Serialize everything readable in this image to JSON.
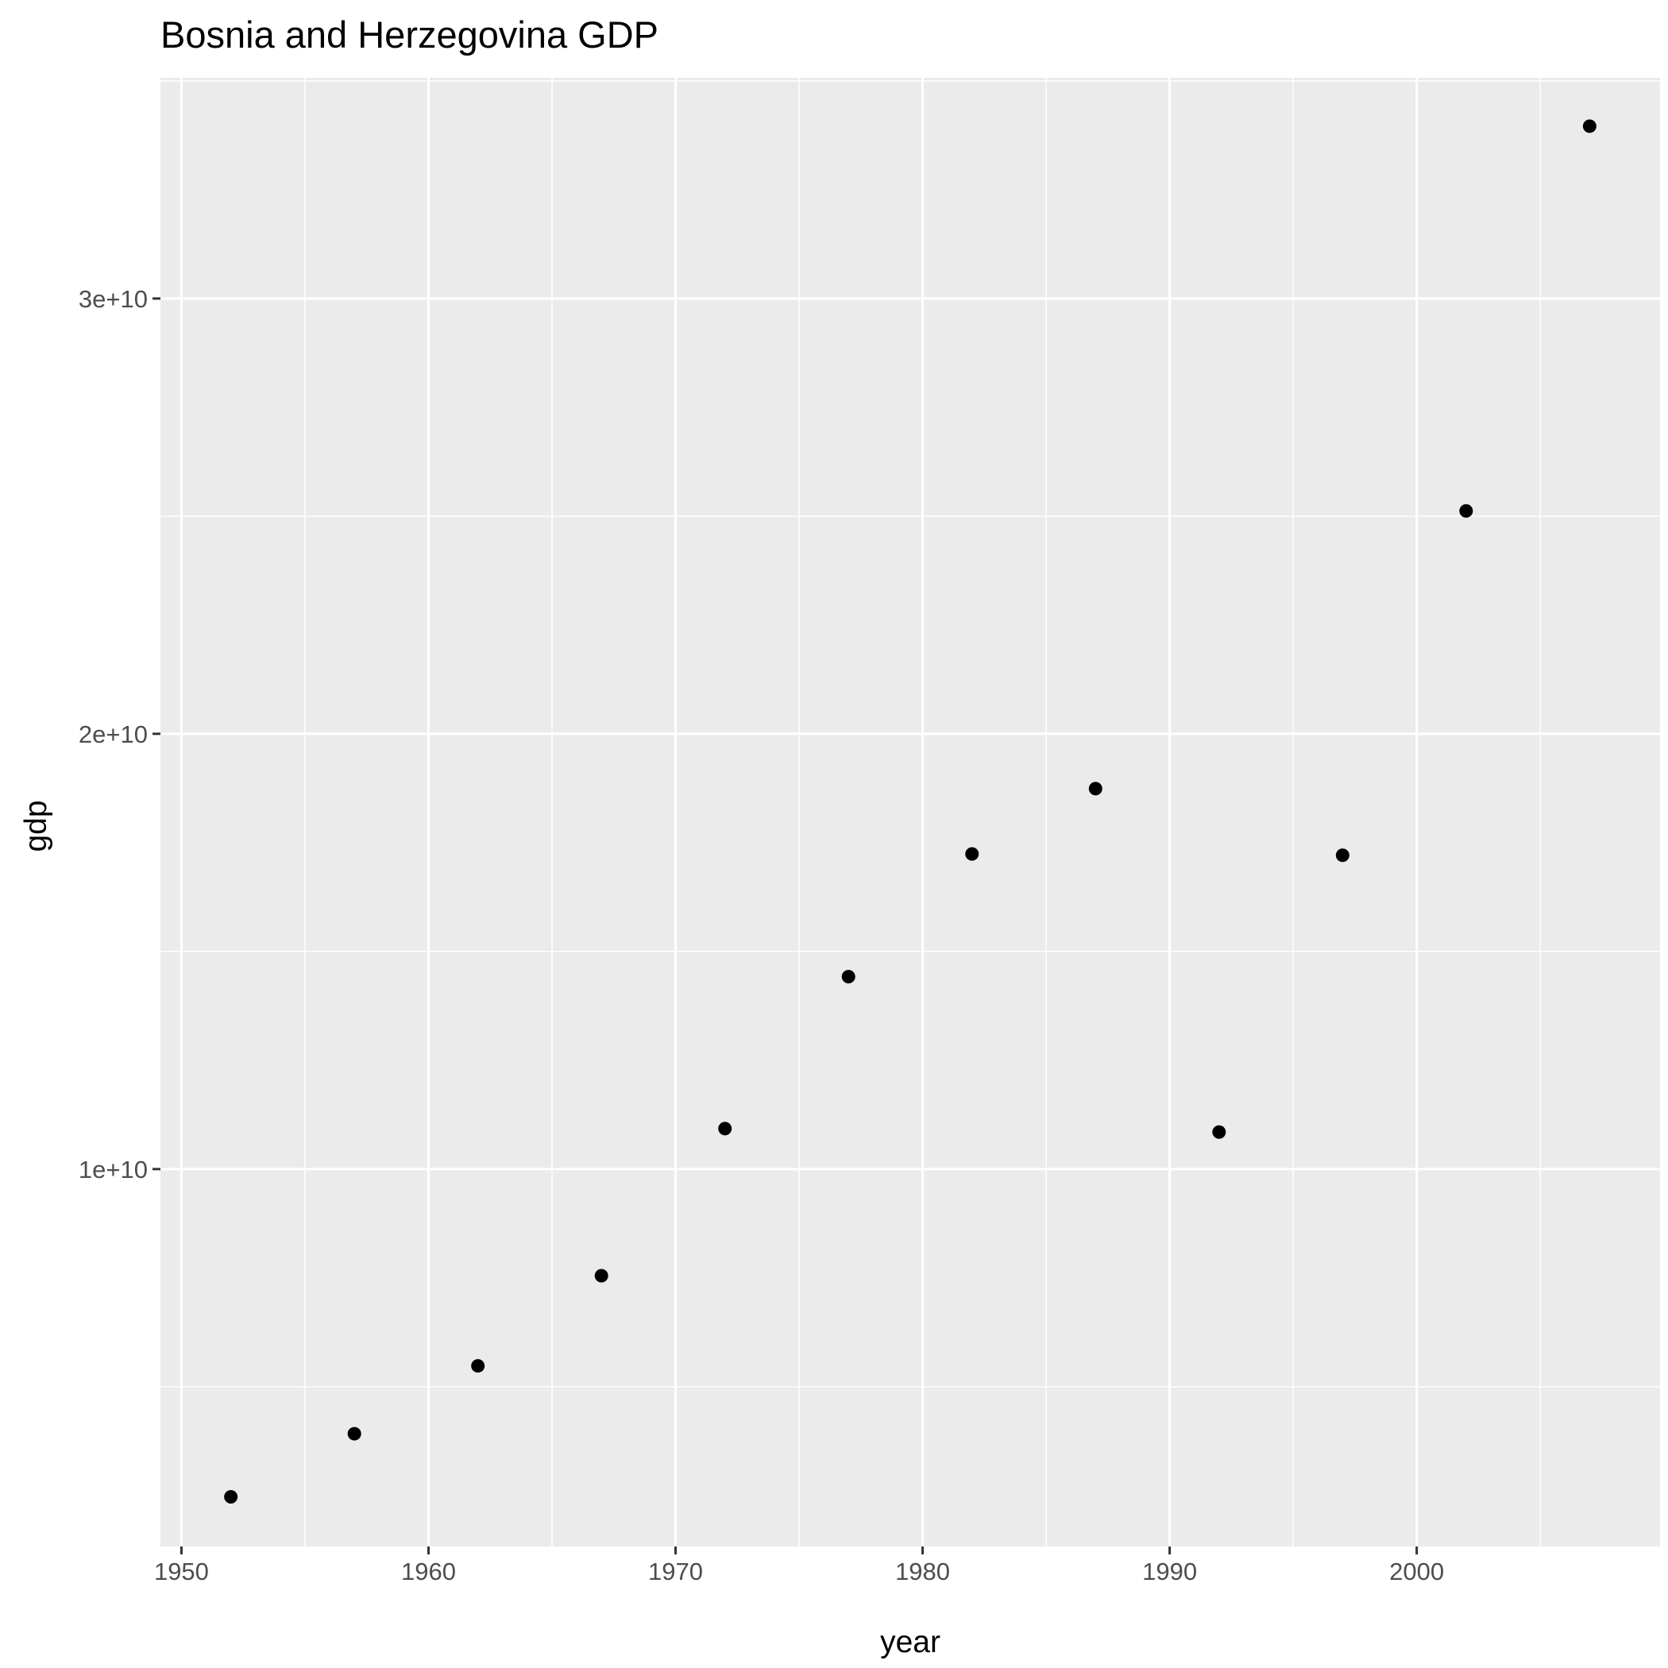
{
  "chart_data": {
    "type": "scatter",
    "title": "Bosnia and Herzegovina GDP",
    "xlabel": "year",
    "ylabel": "gdp",
    "x": [
      1952,
      1957,
      1962,
      1967,
      1972,
      1977,
      1982,
      1987,
      1992,
      1997,
      2002,
      2007
    ],
    "y": [
      2470000000.0,
      3920000000.0,
      5480000000.0,
      7550000000.0,
      10930000000.0,
      14420000000.0,
      17240000000.0,
      18740000000.0,
      10850000000.0,
      17210000000.0,
      25120000000.0,
      33960000000.0
    ],
    "xlim": [
      1949.15,
      2009.85
    ],
    "ylim": [
      1330000000.0,
      35070000000.0
    ],
    "x_ticks": [
      1950,
      1960,
      1970,
      1980,
      1990,
      2000
    ],
    "x_tick_labels": [
      "1950",
      "1960",
      "1970",
      "1980",
      "1990",
      "2000"
    ],
    "x_minor_ticks": [
      1955,
      1965,
      1975,
      1985,
      1995,
      2005
    ],
    "y_ticks": [
      10000000000.0,
      20000000000.0,
      30000000000.0
    ],
    "y_tick_labels": [
      "1e+10",
      "2e+10",
      "3e+10"
    ],
    "y_minor_ticks": [
      5000000000.0,
      15000000000.0,
      25000000000.0,
      35000000000.0
    ],
    "grid": true,
    "legend": "none",
    "colors": {
      "panel_background": "#ebebeb",
      "grid_line": "#ffffff",
      "point": "#000000",
      "tick_label": "#4d4d4d",
      "tick_mark": "#333333"
    }
  }
}
